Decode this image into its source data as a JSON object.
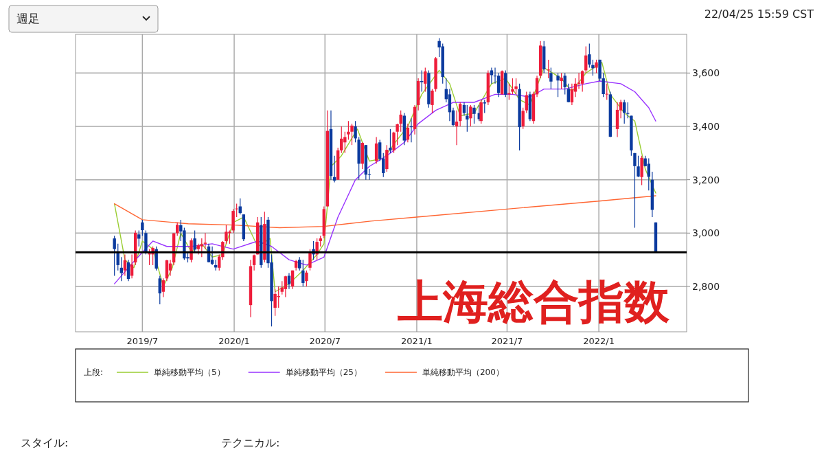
{
  "chart_data": {
    "type": "candlestick",
    "title": "上海総合指数",
    "legend_title": "上段:",
    "legend": "bottom",
    "grid": true,
    "annotations": [
      "週足",
      "22/04/25 15:59 CST",
      "スタイル:",
      "テクニカル:"
    ],
    "xlim": [
      "2019-02-17",
      "2022-06-26"
    ],
    "xticks": [
      {
        "value": "2019-07-01",
        "label": "2019/7"
      },
      {
        "value": "2020-01-01",
        "label": "2020/1"
      },
      {
        "value": "2020-07-01",
        "label": "2020/7"
      },
      {
        "value": "2021-01-01",
        "label": "2021/1"
      },
      {
        "value": "2021-07-01",
        "label": "2021/7"
      },
      {
        "value": "2022-01-01",
        "label": "2022/1"
      }
    ],
    "ylim": [
      2630,
      3745
    ],
    "yticks": [
      {
        "value": 2800,
        "label": "2,800"
      },
      {
        "value": 3000,
        "label": "3,000"
      },
      {
        "value": 3200,
        "label": "3,200"
      },
      {
        "value": 3400,
        "label": "3,400"
      },
      {
        "value": 3600,
        "label": "3,600"
      }
    ],
    "ref_lines": [
      {
        "axis": "y",
        "value": 2928,
        "color": "#000000"
      }
    ],
    "x": [
      "2019-05-06",
      "2019-05-13",
      "2019-05-20",
      "2019-05-27",
      "2019-06-03",
      "2019-06-10",
      "2019-06-17",
      "2019-06-24",
      "2019-07-01",
      "2019-07-08",
      "2019-07-15",
      "2019-07-22",
      "2019-07-29",
      "2019-08-05",
      "2019-08-12",
      "2019-08-19",
      "2019-08-26",
      "2019-09-02",
      "2019-09-09",
      "2019-09-16",
      "2019-09-23",
      "2019-09-30",
      "2019-10-07",
      "2019-10-14",
      "2019-10-21",
      "2019-10-28",
      "2019-11-04",
      "2019-11-11",
      "2019-11-18",
      "2019-11-25",
      "2019-12-02",
      "2019-12-09",
      "2019-12-16",
      "2019-12-23",
      "2019-12-30",
      "2020-01-06",
      "2020-01-13",
      "2020-01-20",
      "2020-02-03",
      "2020-02-10",
      "2020-02-17",
      "2020-02-24",
      "2020-03-02",
      "2020-03-09",
      "2020-03-16",
      "2020-03-23",
      "2020-03-30",
      "2020-04-06",
      "2020-04-13",
      "2020-04-20",
      "2020-04-27",
      "2020-05-04",
      "2020-05-11",
      "2020-05-18",
      "2020-05-25",
      "2020-06-01",
      "2020-06-08",
      "2020-06-15",
      "2020-06-22",
      "2020-06-29",
      "2020-07-06",
      "2020-07-13",
      "2020-07-20",
      "2020-07-27",
      "2020-08-03",
      "2020-08-10",
      "2020-08-17",
      "2020-08-24",
      "2020-08-31",
      "2020-09-07",
      "2020-09-14",
      "2020-09-21",
      "2020-09-28",
      "2020-10-12",
      "2020-10-19",
      "2020-10-26",
      "2020-11-02",
      "2020-11-09",
      "2020-11-16",
      "2020-11-23",
      "2020-11-30",
      "2020-12-07",
      "2020-12-14",
      "2020-12-21",
      "2020-12-28",
      "2021-01-04",
      "2021-01-11",
      "2021-01-18",
      "2021-01-25",
      "2021-02-01",
      "2021-02-08",
      "2021-02-15",
      "2021-02-22",
      "2021-03-01",
      "2021-03-08",
      "2021-03-15",
      "2021-03-22",
      "2021-03-29",
      "2021-04-06",
      "2021-04-12",
      "2021-04-19",
      "2021-04-26",
      "2021-05-06",
      "2021-05-10",
      "2021-05-17",
      "2021-05-24",
      "2021-05-31",
      "2021-06-07",
      "2021-06-14",
      "2021-06-21",
      "2021-06-28",
      "2021-07-05",
      "2021-07-12",
      "2021-07-19",
      "2021-07-26",
      "2021-08-02",
      "2021-08-09",
      "2021-08-16",
      "2021-08-23",
      "2021-08-30",
      "2021-09-06",
      "2021-09-13",
      "2021-09-22",
      "2021-09-27",
      "2021-10-11",
      "2021-10-18",
      "2021-10-25",
      "2021-11-01",
      "2021-11-08",
      "2021-11-15",
      "2021-11-22",
      "2021-11-29",
      "2021-12-06",
      "2021-12-13",
      "2021-12-20",
      "2021-12-27",
      "2022-01-03",
      "2022-01-10",
      "2022-01-17",
      "2022-01-24",
      "2022-02-07",
      "2022-02-14",
      "2022-02-21",
      "2022-02-28",
      "2022-03-07",
      "2022-03-14",
      "2022-03-21",
      "2022-03-28",
      "2022-04-04",
      "2022-04-11",
      "2022-04-18",
      "2022-04-25"
    ],
    "ohlc": [
      [
        2980,
        2990,
        2840,
        2940
      ],
      [
        2930,
        2960,
        2860,
        2880
      ],
      [
        2870,
        2910,
        2820,
        2850
      ],
      [
        2860,
        2920,
        2840,
        2898
      ],
      [
        2890,
        2900,
        2820,
        2828
      ],
      [
        2840,
        2920,
        2830,
        2882
      ],
      [
        2890,
        3010,
        2880,
        3001
      ],
      [
        2995,
        3010,
        2950,
        2979
      ],
      [
        3040,
        3050,
        2990,
        3011
      ],
      [
        3000,
        3010,
        2920,
        2930
      ],
      [
        2920,
        2940,
        2880,
        2924
      ],
      [
        2920,
        2950,
        2880,
        2944
      ],
      [
        2940,
        2950,
        2860,
        2867
      ],
      [
        2830,
        2840,
        2733,
        2774
      ],
      [
        2780,
        2830,
        2760,
        2823
      ],
      [
        2830,
        2900,
        2820,
        2898
      ],
      [
        2860,
        2900,
        2840,
        2886
      ],
      [
        2890,
        3000,
        2880,
        2999
      ],
      [
        3000,
        3040,
        2990,
        3031
      ],
      [
        3030,
        3050,
        2970,
        3006
      ],
      [
        3010,
        3020,
        2900,
        2905
      ],
      [
        2910,
        2930,
        2890,
        2905
      ],
      [
        2900,
        2980,
        2890,
        2973
      ],
      [
        2980,
        3010,
        2930,
        2938
      ],
      [
        2940,
        2960,
        2920,
        2954
      ],
      [
        2950,
        2980,
        2910,
        2958
      ],
      [
        2960,
        3000,
        2940,
        2964
      ],
      [
        2950,
        2960,
        2890,
        2891
      ],
      [
        2900,
        2950,
        2880,
        2885
      ],
      [
        2880,
        2900,
        2860,
        2871
      ],
      [
        2870,
        2920,
        2860,
        2912
      ],
      [
        2910,
        2970,
        2900,
        2967
      ],
      [
        2970,
        3030,
        2960,
        3005
      ],
      [
        3000,
        3010,
        2960,
        3005
      ],
      [
        3010,
        3090,
        3000,
        3083
      ],
      [
        3090,
        3110,
        3060,
        3092
      ],
      [
        3100,
        3130,
        3070,
        3075
      ],
      [
        3070,
        3070,
        2970,
        2977
      ],
      [
        2730,
        2900,
        2685,
        2876
      ],
      [
        2880,
        2920,
        2860,
        2917
      ],
      [
        2920,
        3060,
        2920,
        3040
      ],
      [
        3030,
        3060,
        2870,
        2880
      ],
      [
        2900,
        3080,
        2890,
        3034
      ],
      [
        3050,
        3060,
        2870,
        2887
      ],
      [
        2890,
        2920,
        2650,
        2745
      ],
      [
        2720,
        2790,
        2690,
        2772
      ],
      [
        2760,
        2800,
        2720,
        2764
      ],
      [
        2780,
        2820,
        2770,
        2796
      ],
      [
        2790,
        2840,
        2760,
        2838
      ],
      [
        2840,
        2850,
        2790,
        2808
      ],
      [
        2800,
        2860,
        2790,
        2860
      ],
      [
        2870,
        2900,
        2860,
        2895
      ],
      [
        2900,
        2910,
        2860,
        2868
      ],
      [
        2860,
        2900,
        2800,
        2813
      ],
      [
        2820,
        2860,
        2800,
        2852
      ],
      [
        2870,
        2940,
        2860,
        2931
      ],
      [
        2940,
        2970,
        2900,
        2920
      ],
      [
        2920,
        2980,
        2900,
        2967
      ],
      [
        2970,
        2990,
        2950,
        2980
      ],
      [
        2990,
        3100,
        2980,
        3090
      ],
      [
        3100,
        3460,
        3100,
        3383
      ],
      [
        3390,
        3460,
        3200,
        3214
      ],
      [
        3210,
        3290,
        3190,
        3197
      ],
      [
        3200,
        3320,
        3200,
        3310
      ],
      [
        3310,
        3400,
        3300,
        3354
      ],
      [
        3340,
        3380,
        3300,
        3360
      ],
      [
        3370,
        3420,
        3350,
        3380
      ],
      [
        3380,
        3410,
        3330,
        3403
      ],
      [
        3400,
        3420,
        3340,
        3355
      ],
      [
        3350,
        3360,
        3200,
        3260
      ],
      [
        3260,
        3340,
        3240,
        3338
      ],
      [
        3330,
        3330,
        3200,
        3219
      ],
      [
        3220,
        3240,
        3200,
        3218
      ],
      [
        3270,
        3360,
        3260,
        3336
      ],
      [
        3340,
        3350,
        3270,
        3278
      ],
      [
        3280,
        3300,
        3210,
        3225
      ],
      [
        3240,
        3330,
        3230,
        3312
      ],
      [
        3320,
        3390,
        3300,
        3310
      ],
      [
        3310,
        3380,
        3300,
        3377
      ],
      [
        3380,
        3410,
        3330,
        3408
      ],
      [
        3410,
        3460,
        3380,
        3444
      ],
      [
        3440,
        3450,
        3330,
        3347
      ],
      [
        3350,
        3410,
        3340,
        3395
      ],
      [
        3400,
        3430,
        3340,
        3397
      ],
      [
        3390,
        3480,
        3370,
        3473
      ],
      [
        3480,
        3580,
        3460,
        3570
      ],
      [
        3570,
        3610,
        3530,
        3566
      ],
      [
        3560,
        3620,
        3530,
        3606
      ],
      [
        3600,
        3610,
        3470,
        3483
      ],
      [
        3480,
        3540,
        3450,
        3534
      ],
      [
        3540,
        3660,
        3530,
        3655
      ],
      [
        3720,
        3731,
        3660,
        3696
      ],
      [
        3700,
        3710,
        3560,
        3585
      ],
      [
        3540,
        3580,
        3490,
        3502
      ],
      [
        3520,
        3540,
        3420,
        3453
      ],
      [
        3460,
        3470,
        3400,
        3405
      ],
      [
        3400,
        3460,
        3330,
        3418
      ],
      [
        3420,
        3490,
        3400,
        3484
      ],
      [
        3480,
        3490,
        3440,
        3450
      ],
      [
        3440,
        3480,
        3380,
        3426
      ],
      [
        3430,
        3480,
        3400,
        3474
      ],
      [
        3470,
        3480,
        3410,
        3447
      ],
      [
        3450,
        3480,
        3420,
        3427
      ],
      [
        3420,
        3500,
        3410,
        3490
      ],
      [
        3490,
        3500,
        3450,
        3486
      ],
      [
        3490,
        3610,
        3480,
        3600
      ],
      [
        3610,
        3620,
        3560,
        3592
      ],
      [
        3590,
        3620,
        3560,
        3589
      ],
      [
        3590,
        3600,
        3510,
        3525
      ],
      [
        3520,
        3610,
        3520,
        3607
      ],
      [
        3600,
        3610,
        3510,
        3519
      ],
      [
        3520,
        3560,
        3500,
        3525
      ],
      [
        3530,
        3580,
        3520,
        3539
      ],
      [
        3540,
        3580,
        3520,
        3550
      ],
      [
        3540,
        3560,
        3310,
        3397
      ],
      [
        3400,
        3470,
        3390,
        3458
      ],
      [
        3460,
        3530,
        3450,
        3517
      ],
      [
        3520,
        3530,
        3420,
        3427
      ],
      [
        3420,
        3530,
        3410,
        3522
      ],
      [
        3520,
        3590,
        3510,
        3581
      ],
      [
        3590,
        3720,
        3580,
        3703
      ],
      [
        3700,
        3720,
        3600,
        3614
      ],
      [
        3610,
        3650,
        3580,
        3613
      ],
      [
        3600,
        3620,
        3540,
        3568
      ],
      [
        3590,
        3600,
        3510,
        3572
      ],
      [
        3570,
        3600,
        3540,
        3582
      ],
      [
        3590,
        3600,
        3520,
        3547
      ],
      [
        3540,
        3560,
        3490,
        3491
      ],
      [
        3490,
        3560,
        3480,
        3539
      ],
      [
        3530,
        3580,
        3510,
        3560
      ],
      [
        3560,
        3600,
        3540,
        3564
      ],
      [
        3560,
        3610,
        3530,
        3607
      ],
      [
        3610,
        3700,
        3600,
        3666
      ],
      [
        3670,
        3710,
        3620,
        3632
      ],
      [
        3630,
        3650,
        3590,
        3618
      ],
      [
        3620,
        3650,
        3600,
        3640
      ],
      [
        3650,
        3650,
        3570,
        3579
      ],
      [
        3580,
        3600,
        3510,
        3521
      ],
      [
        3520,
        3560,
        3500,
        3522
      ],
      [
        3520,
        3530,
        3360,
        3361
      ],
      [
        3390,
        3490,
        3360,
        3462
      ],
      [
        3460,
        3500,
        3430,
        3491
      ],
      [
        3490,
        3500,
        3410,
        3451
      ],
      [
        3450,
        3490,
        3430,
        3447
      ],
      [
        3440,
        3440,
        3290,
        3310
      ],
      [
        3300,
        3300,
        3020,
        3251
      ],
      [
        3250,
        3290,
        3210,
        3212
      ],
      [
        3210,
        3290,
        3180,
        3282
      ],
      [
        3280,
        3290,
        3250,
        3251
      ],
      [
        3260,
        3280,
        3160,
        3211
      ],
      [
        3200,
        3230,
        3060,
        3087
      ],
      [
        3040,
        3040,
        2928,
        2928
      ]
    ],
    "series": [
      {
        "name": "単純移動平均（5）",
        "type": "line",
        "color": "#9acd32",
        "x": [
          "2019-05-06",
          "2019-05-27",
          "2019-06-14",
          "2019-07-01",
          "2019-07-22",
          "2019-08-12",
          "2019-08-30",
          "2019-09-16",
          "2019-10-07",
          "2019-10-28",
          "2019-11-18",
          "2019-12-09",
          "2019-12-30",
          "2020-01-20",
          "2020-02-17",
          "2020-03-13",
          "2020-03-23",
          "2020-04-20",
          "2020-05-18",
          "2020-06-15",
          "2020-06-29",
          "2020-07-13",
          "2020-08-03",
          "2020-09-04",
          "2020-09-28",
          "2020-10-26",
          "2020-11-23",
          "2020-12-14",
          "2021-01-11",
          "2021-02-15",
          "2021-03-08",
          "2021-03-29",
          "2021-04-26",
          "2021-05-31",
          "2021-06-28",
          "2021-07-26",
          "2021-08-16",
          "2021-09-13",
          "2021-10-18",
          "2021-11-08",
          "2021-12-06",
          "2022-01-07",
          "2022-01-24",
          "2022-02-21",
          "2022-03-14",
          "2022-04-04",
          "2022-04-25"
        ],
        "values": [
          3110,
          2900,
          2870,
          2970,
          2940,
          2800,
          2870,
          3000,
          2930,
          2960,
          2910,
          2920,
          3040,
          3060,
          2950,
          2980,
          2780,
          2810,
          2860,
          2920,
          2960,
          3250,
          3290,
          3390,
          3270,
          3280,
          3350,
          3400,
          3520,
          3610,
          3560,
          3440,
          3450,
          3560,
          3580,
          3500,
          3480,
          3620,
          3580,
          3530,
          3600,
          3640,
          3520,
          3450,
          3420,
          3240,
          3150
        ]
      },
      {
        "name": "単純移動平均（25）",
        "type": "line",
        "color": "#9933ff",
        "x": [
          "2019-05-06",
          "2019-06-17",
          "2019-07-22",
          "2019-08-19",
          "2019-10-07",
          "2019-11-18",
          "2019-12-30",
          "2020-02-17",
          "2020-03-16",
          "2020-04-20",
          "2020-05-25",
          "2020-06-29",
          "2020-07-27",
          "2020-08-31",
          "2020-09-28",
          "2020-11-02",
          "2020-12-07",
          "2021-01-04",
          "2021-02-08",
          "2021-03-15",
          "2021-04-26",
          "2021-06-07",
          "2021-07-12",
          "2021-08-16",
          "2021-09-13",
          "2021-10-25",
          "2021-12-06",
          "2022-01-03",
          "2022-02-14",
          "2022-03-14",
          "2022-04-11",
          "2022-04-25"
        ],
        "values": [
          2810,
          2900,
          2970,
          2950,
          2950,
          2960,
          2940,
          2970,
          2950,
          2900,
          2880,
          2910,
          3060,
          3200,
          3250,
          3290,
          3340,
          3410,
          3460,
          3490,
          3490,
          3520,
          3520,
          3510,
          3540,
          3540,
          3560,
          3570,
          3560,
          3530,
          3470,
          3420
        ]
      },
      {
        "name": "単純移動平均（200）",
        "type": "line",
        "color": "#ff6633",
        "x": [
          "2019-05-06",
          "2019-07-01",
          "2019-10-01",
          "2020-01-01",
          "2020-04-01",
          "2020-06-29",
          "2020-10-01",
          "2021-01-01",
          "2021-07-01",
          "2022-01-01",
          "2022-04-25"
        ],
        "values": [
          3110,
          3050,
          3035,
          3030,
          3020,
          3025,
          3045,
          3060,
          3090,
          3120,
          3140
        ]
      }
    ]
  }
}
